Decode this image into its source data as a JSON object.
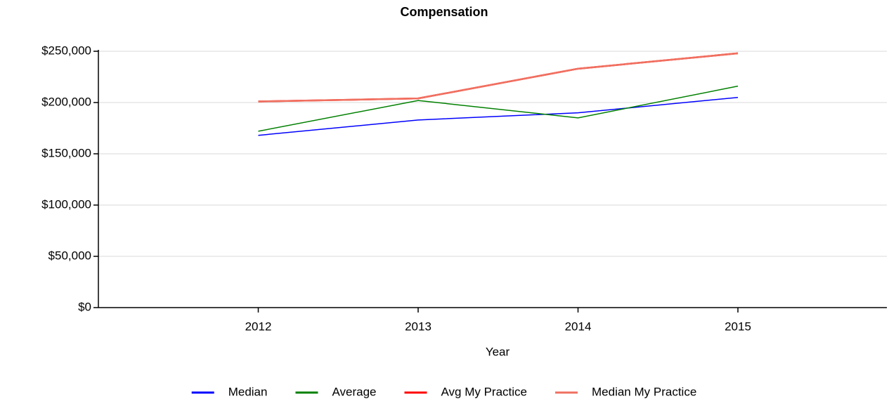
{
  "chart_data": {
    "type": "line",
    "title": "Compensation",
    "x_label": "Year",
    "categories": [
      "2012",
      "2013",
      "2014",
      "2015"
    ],
    "series": [
      {
        "name": "Median",
        "color": "#0000ff",
        "values": [
          168000,
          183000,
          190000,
          205000
        ]
      },
      {
        "name": "Average",
        "color": "#008000",
        "values": [
          172000,
          202000,
          185000,
          216000
        ]
      },
      {
        "name": "Avg My Practice",
        "color": "#ff0000",
        "values": [
          201000,
          204000,
          233000,
          248000
        ]
      },
      {
        "name": "Median My Practice",
        "color": "#f07060",
        "values": [
          201000,
          204000,
          233000,
          248000
        ]
      }
    ],
    "ylim": [
      0,
      250000
    ],
    "yticks": [
      {
        "value": 0,
        "label": "$0"
      },
      {
        "value": 50000,
        "label": "$50,000"
      },
      {
        "value": 100000,
        "label": "$100,000"
      },
      {
        "value": 150000,
        "label": "$150,000"
      },
      {
        "value": 200000,
        "label": "$200,000"
      },
      {
        "value": 250000,
        "label": "$250,000"
      }
    ],
    "grid": true,
    "legend": "bottom"
  }
}
